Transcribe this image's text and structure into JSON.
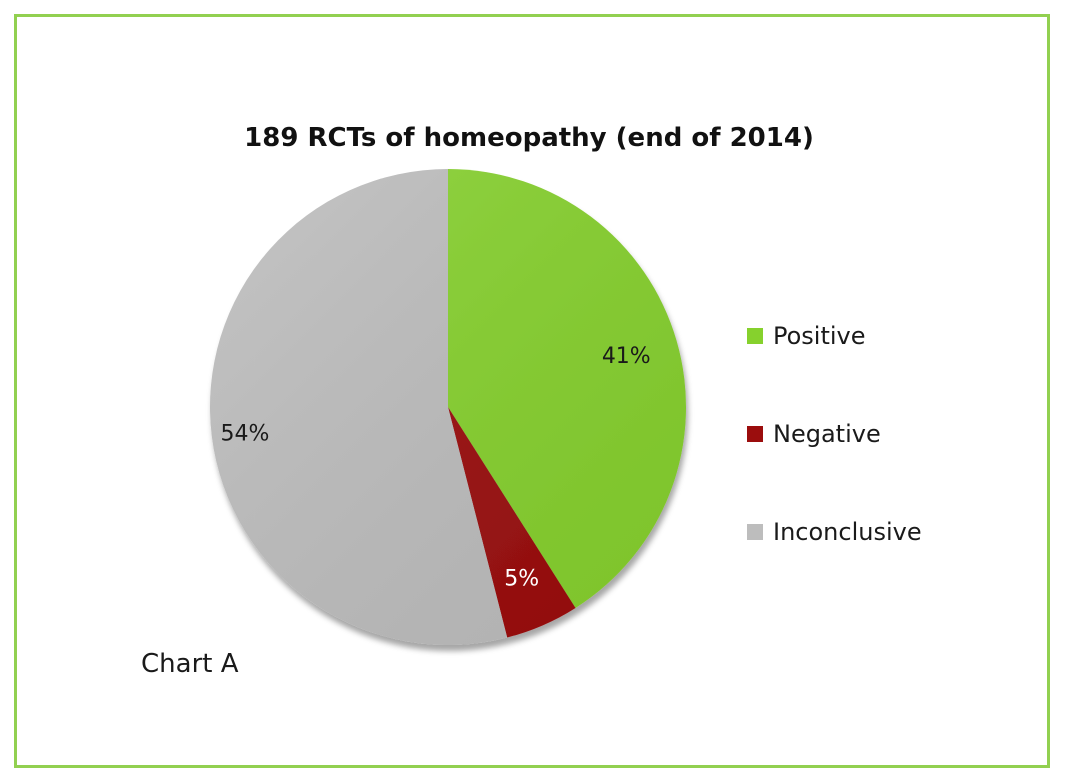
{
  "chart_data": {
    "type": "pie",
    "title": "189 RCTs of homeopathy (end of 2014)",
    "categories": [
      "Positive",
      "Negative",
      "Inconclusive"
    ],
    "values": [
      41,
      5,
      54
    ],
    "value_labels": [
      "41%",
      "5%",
      "54%"
    ],
    "colors": [
      "#86d12d",
      "#9b0d0d",
      "#bdbdbd"
    ],
    "label_colors": [
      "#1a1a1a",
      "#ffffff",
      "#1a1a1a"
    ],
    "legend_position": "right",
    "annotation": "Chart A"
  },
  "frame_color": "#92d050"
}
